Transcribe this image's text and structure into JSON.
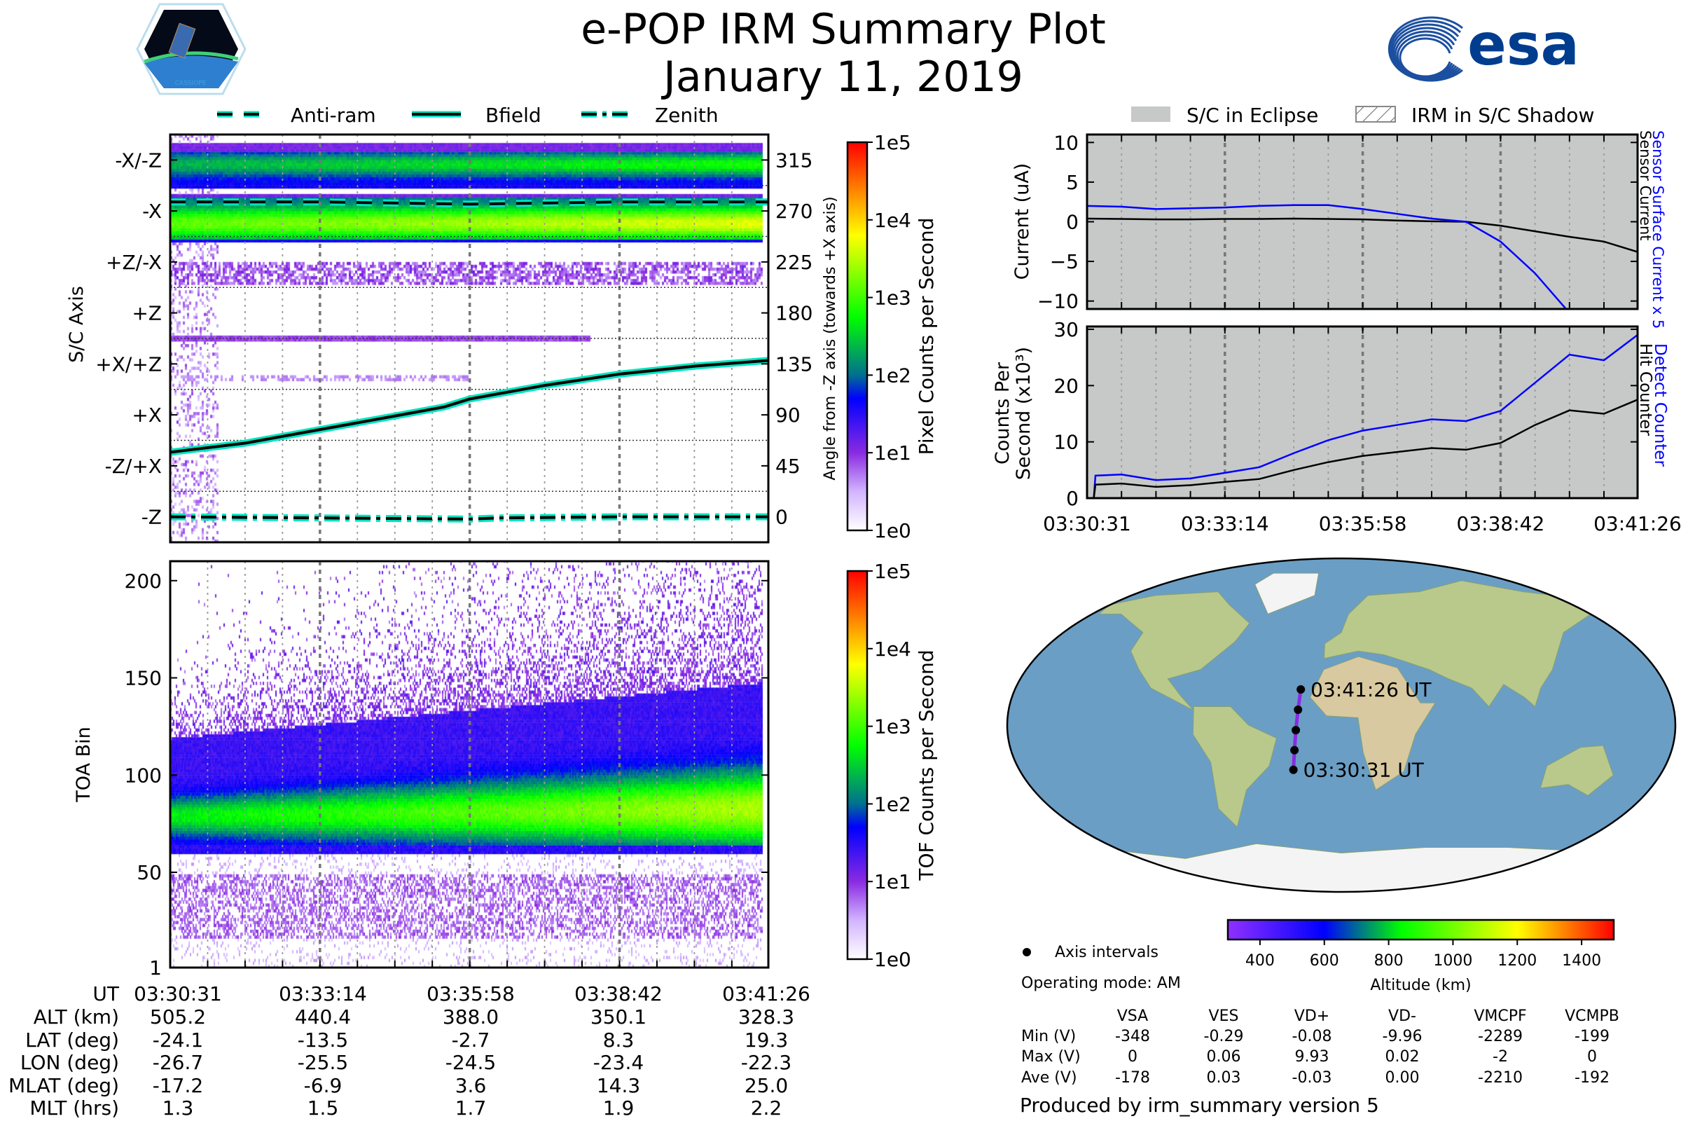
{
  "header": {
    "title": "e-POP IRM Summary Plot",
    "date": "January 11, 2019"
  },
  "logos": {
    "left_text": "CASSIOPE",
    "right_text": "esa"
  },
  "legend_left": [
    {
      "label": "Anti-ram",
      "style": "dashed"
    },
    {
      "label": "Bfield",
      "style": "solid"
    },
    {
      "label": "Zenith",
      "style": "dashdot"
    }
  ],
  "legend_right": [
    {
      "label": "S/C in Eclipse",
      "style": "gray-fill"
    },
    {
      "label": "IRM in S/C Shadow",
      "style": "hatched"
    }
  ],
  "colors": {
    "line_outline": "#00e5c0",
    "blue": "#0000ff",
    "eclipse": "#c6c9c8",
    "ocean": "#6a9ec4"
  },
  "chart_data": [
    {
      "id": "pixel",
      "type": "heatmap",
      "ylabel": "S/C Axis",
      "ylabel_right": "Angle from -Z axis (towards +X axis)",
      "yticks_left": [
        "-X/-Z",
        "-X",
        "+Z/-X",
        "+Z",
        "+X/+Z",
        "+X",
        "-Z/+X",
        "-Z"
      ],
      "yticks_right": [
        "315",
        "270",
        "225",
        "180",
        "135",
        "90",
        "45",
        "0"
      ],
      "ytick_values": [
        315,
        270,
        225,
        180,
        135,
        90,
        45,
        0
      ],
      "ylim": [
        -22.5,
        337.5
      ],
      "x_elapsed_s": [
        0,
        655
      ],
      "colorbar": {
        "label": "Pixel Counts per Second",
        "ticks": [
          "1e5",
          "1e4",
          "1e3",
          "1e2",
          "1e1",
          "1e0"
        ],
        "range_log10": [
          0,
          5
        ]
      },
      "lines": [
        {
          "name": "Anti-ram",
          "t": [
            0,
            164,
            328,
            492,
            655
          ],
          "angle": [
            278,
            278,
            276,
            278,
            278
          ]
        },
        {
          "name": "Bfield",
          "t": [
            0,
            82,
            164,
            246,
            300,
            328,
            410,
            492,
            574,
            655
          ],
          "angle": [
            57,
            65,
            77,
            89,
            97,
            104,
            116,
            126,
            133,
            138
          ]
        },
        {
          "name": "Zenith",
          "t": [
            0,
            164,
            328,
            360,
            492,
            655
          ],
          "angle": [
            0,
            -1,
            -2,
            -1,
            0,
            0
          ]
        }
      ]
    },
    {
      "id": "tof",
      "type": "heatmap",
      "ylabel": "TOA Bin",
      "yticks": [
        "200",
        "150",
        "100",
        "50",
        "1"
      ],
      "ytick_values": [
        200,
        150,
        100,
        50,
        1
      ],
      "ylim": [
        1,
        210
      ],
      "colorbar": {
        "label": "TOF Counts per Second",
        "ticks": [
          "1e5",
          "1e4",
          "1e3",
          "1e2",
          "1e1",
          "1e0"
        ],
        "range_log10": [
          0,
          5
        ]
      }
    },
    {
      "id": "current",
      "type": "line",
      "ylabel": "Current (uA)",
      "ylim": [
        -11,
        11
      ],
      "yticks": [
        "10",
        "5",
        "0",
        "−5",
        "−10"
      ],
      "ytick_values": [
        10,
        5,
        0,
        -5,
        -10
      ],
      "t": [
        0,
        41,
        82,
        123,
        164,
        205,
        246,
        287,
        328,
        369,
        410,
        451,
        492,
        533,
        574,
        615,
        655
      ],
      "series": [
        {
          "name": "Sensor Current",
          "color": "#000000",
          "values": [
            0.4,
            0.35,
            0.3,
            0.3,
            0.35,
            0.35,
            0.4,
            0.35,
            0.3,
            0.15,
            0.05,
            0.0,
            -0.5,
            -1.2,
            -1.9,
            -2.5,
            -3.8
          ]
        },
        {
          "name": "Sensor Surface Current x 5",
          "color": "#0000ff",
          "values": [
            2.0,
            1.9,
            1.6,
            1.7,
            1.8,
            2.0,
            2.1,
            2.1,
            1.6,
            1.0,
            0.4,
            0.0,
            -2.5,
            -6.5,
            -11.5,
            null,
            null
          ]
        }
      ],
      "right_labels": [
        "Sensor Surface Current x 5",
        "Sensor Current"
      ]
    },
    {
      "id": "counts",
      "type": "line",
      "ylabel": "Counts Per",
      "ylabel2": "Second (x10³)",
      "ylim": [
        0,
        30.5
      ],
      "yticks": [
        "30",
        "20",
        "10",
        "0"
      ],
      "ytick_values": [
        30,
        20,
        10,
        0
      ],
      "t": [
        0,
        8,
        10,
        41,
        82,
        123,
        164,
        205,
        246,
        287,
        328,
        369,
        410,
        451,
        492,
        533,
        574,
        615,
        655
      ],
      "series": [
        {
          "name": "Detect Counter",
          "color": "#0000ff",
          "values": [
            0,
            0,
            4.0,
            4.2,
            3.2,
            3.5,
            4.5,
            5.5,
            8,
            10.3,
            12,
            13,
            14,
            13.7,
            15.5,
            20.5,
            25.5,
            24.5,
            29
          ]
        },
        {
          "name": "Hit Counter",
          "color": "#000000",
          "values": [
            0,
            0,
            2.4,
            2.6,
            2.0,
            2.3,
            2.9,
            3.4,
            5,
            6.4,
            7.5,
            8.2,
            8.9,
            8.6,
            9.8,
            13,
            15.6,
            15,
            17.5
          ]
        }
      ],
      "right_labels": [
        "Detect Counter",
        "Hit Counter"
      ],
      "xticks": [
        "03:30:31",
        "03:33:14",
        "03:35:58",
        "03:38:42",
        "03:41:26"
      ]
    },
    {
      "id": "map",
      "type": "scatter",
      "track": {
        "lon": [
          -26.7,
          -25.5,
          -24.5,
          -23.4,
          -22.3
        ],
        "lat": [
          -24.1,
          -13.5,
          -2.7,
          8.3,
          19.3
        ],
        "altitude_km": [
          505.2,
          440.4,
          388.0,
          350.1,
          328.3
        ]
      },
      "labels": {
        "start": "03:30:31 UT",
        "end": "03:41:26 UT"
      },
      "legend": "Axis intervals",
      "colorbar": {
        "label": "Altitude (km)",
        "ticks": [
          "400",
          "600",
          "800",
          "1000",
          "1200",
          "1400"
        ],
        "tick_values": [
          400,
          600,
          800,
          1000,
          1200,
          1400
        ],
        "range": [
          300,
          1500
        ]
      }
    }
  ],
  "orbit_table": {
    "row_labels": [
      "UT",
      "ALT (km)",
      "LAT (deg)",
      "LON (deg)",
      "MLAT (deg)",
      "MLT (hrs)"
    ],
    "columns": [
      [
        "03:30:31",
        "505.2",
        "-24.1",
        "-26.7",
        "-17.2",
        "1.3"
      ],
      [
        "03:33:14",
        "440.4",
        "-13.5",
        "-25.5",
        "-6.9",
        "1.5"
      ],
      [
        "03:35:58",
        "388.0",
        "-2.7",
        "-24.5",
        "3.6",
        "1.7"
      ],
      [
        "03:38:42",
        "350.1",
        "8.3",
        "-23.4",
        "14.3",
        "1.9"
      ],
      [
        "03:41:26",
        "328.3",
        "19.3",
        "-22.3",
        "25.0",
        "2.2"
      ]
    ]
  },
  "operating_mode": "Operating mode: AM",
  "voltage_table": {
    "headers": [
      "VSA",
      "VES",
      "VD+",
      "VD-",
      "VMCPF",
      "VCMPB"
    ],
    "rows": [
      {
        "label": "Min (V)",
        "values": [
          "-348",
          "-0.29",
          "-0.08",
          "-9.96",
          "-2289",
          "-199"
        ]
      },
      {
        "label": "Max (V)",
        "values": [
          "0",
          "0.06",
          "9.93",
          "0.02",
          "-2",
          "0"
        ]
      },
      {
        "label": "Ave (V)",
        "values": [
          "-178",
          "0.03",
          "-0.03",
          "0.00",
          "-2210",
          "-192"
        ]
      }
    ]
  },
  "footer": "Produced by irm_summary version 5"
}
